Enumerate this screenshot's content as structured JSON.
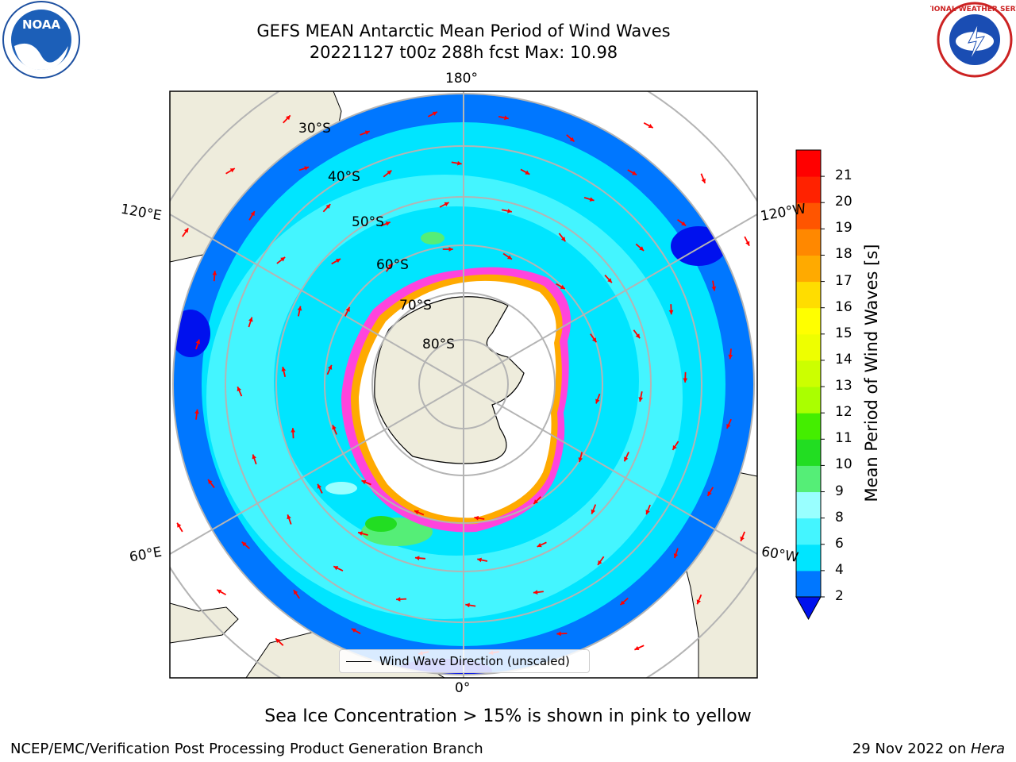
{
  "title_line1": "GEFS MEAN Antarctic Mean Period of Wind Waves",
  "title_line2": "20221127 t00z 288h fcst   Max: 10.98",
  "logos": {
    "left": "noaa-logo",
    "right": "nws-logo",
    "left_text": "NOAA",
    "right_text": "NATIONAL WEATHER SERVICE"
  },
  "map": {
    "projection": "south-polar-stereographic",
    "longitude_labels": {
      "top": "180°",
      "bottom": "0°",
      "upper_left": "120°E",
      "upper_right": "120°W",
      "lower_left": "60°E",
      "lower_right": "60°W"
    },
    "latitude_labels": [
      "30°S",
      "40°S",
      "50°S",
      "60°S",
      "70°S",
      "80°S"
    ],
    "colors": {
      "land": "#eeecdc",
      "ice_shelf": "#ffffff",
      "ocean_base": "#00e5ff",
      "grid": "#b4b4b4",
      "arrow": "#ff0000",
      "sea_ice_edge": "#ff33cc"
    }
  },
  "legend": {
    "label": "Wind Wave Direction (unscaled)"
  },
  "colorbar": {
    "label": "Mean Period of Wind Waves [s]",
    "ticks": [
      "2",
      "4",
      "6",
      "8",
      "9",
      "10",
      "11",
      "12",
      "13",
      "14",
      "15",
      "16",
      "17",
      "18",
      "19",
      "20",
      "21"
    ],
    "colors": [
      "#0011ee",
      "#0077ff",
      "#00e5ff",
      "#44f5ff",
      "#99ffff",
      "#55ee77",
      "#22dd22",
      "#44ee00",
      "#aaff00",
      "#ccff00",
      "#eeff00",
      "#ffff00",
      "#ffdd00",
      "#ffaa00",
      "#ff8800",
      "#ff5500",
      "#ff2200",
      "#ff0000"
    ]
  },
  "note": "Sea Ice Concentration > 15% is shown in pink to yellow",
  "footer": {
    "left": "NCEP/EMC/Verification Post Processing Product Generation Branch",
    "right_date": "29 Nov 2022 on ",
    "right_host": "Hera"
  }
}
